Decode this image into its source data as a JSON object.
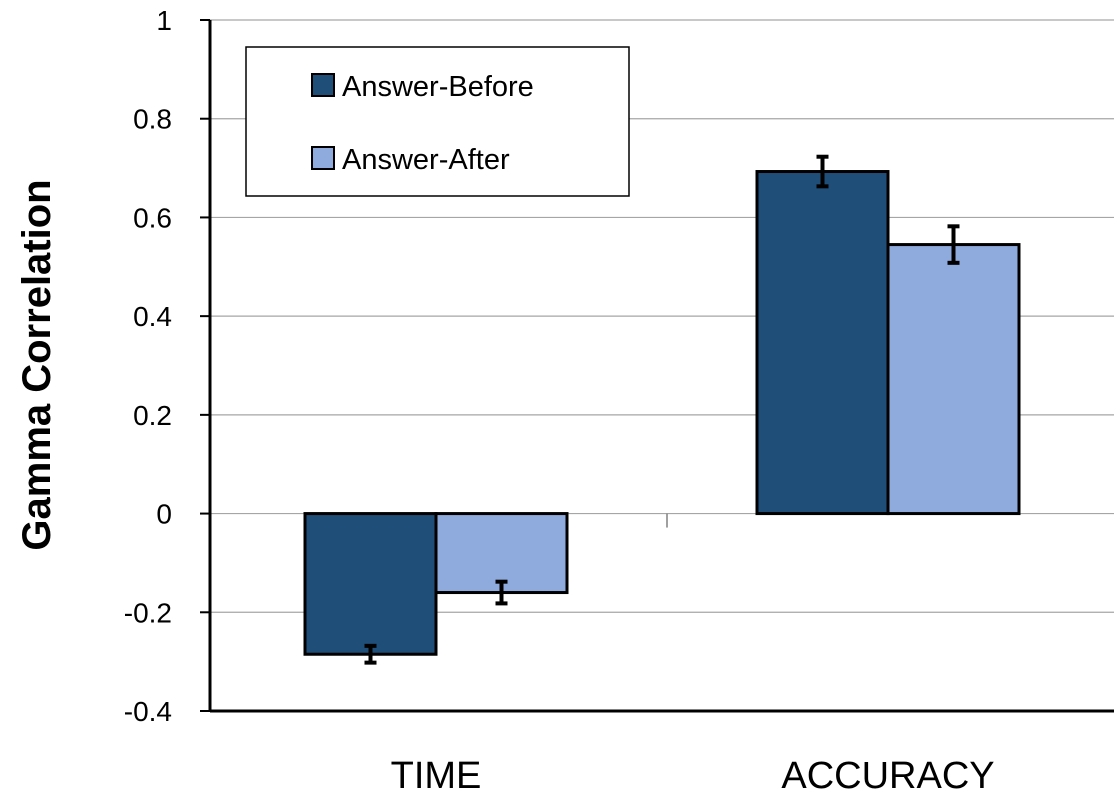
{
  "chart_data": {
    "type": "bar",
    "categories": [
      "TIME",
      "ACCURACY"
    ],
    "series": [
      {
        "name": "Answer-Before",
        "values": [
          -0.285,
          0.693
        ],
        "error": [
          0.017,
          0.03
        ],
        "color": "#1f4e79"
      },
      {
        "name": "Answer-After",
        "values": [
          -0.16,
          0.545
        ],
        "error": [
          0.022,
          0.037
        ],
        "color": "#8faadc"
      }
    ],
    "ylabel": "Gamma Correlation",
    "xlabel": "",
    "ylim": [
      -0.4,
      1
    ],
    "yticks": [
      "-0.4",
      "-0.2",
      "0",
      "0.2",
      "0.4",
      "0.6",
      "0.8",
      "1"
    ],
    "ytick_values": [
      -0.4,
      -0.2,
      0,
      0.2,
      0.4,
      0.6,
      0.8,
      1
    ],
    "grid": true,
    "legend": "top-left",
    "error_bars": true
  }
}
